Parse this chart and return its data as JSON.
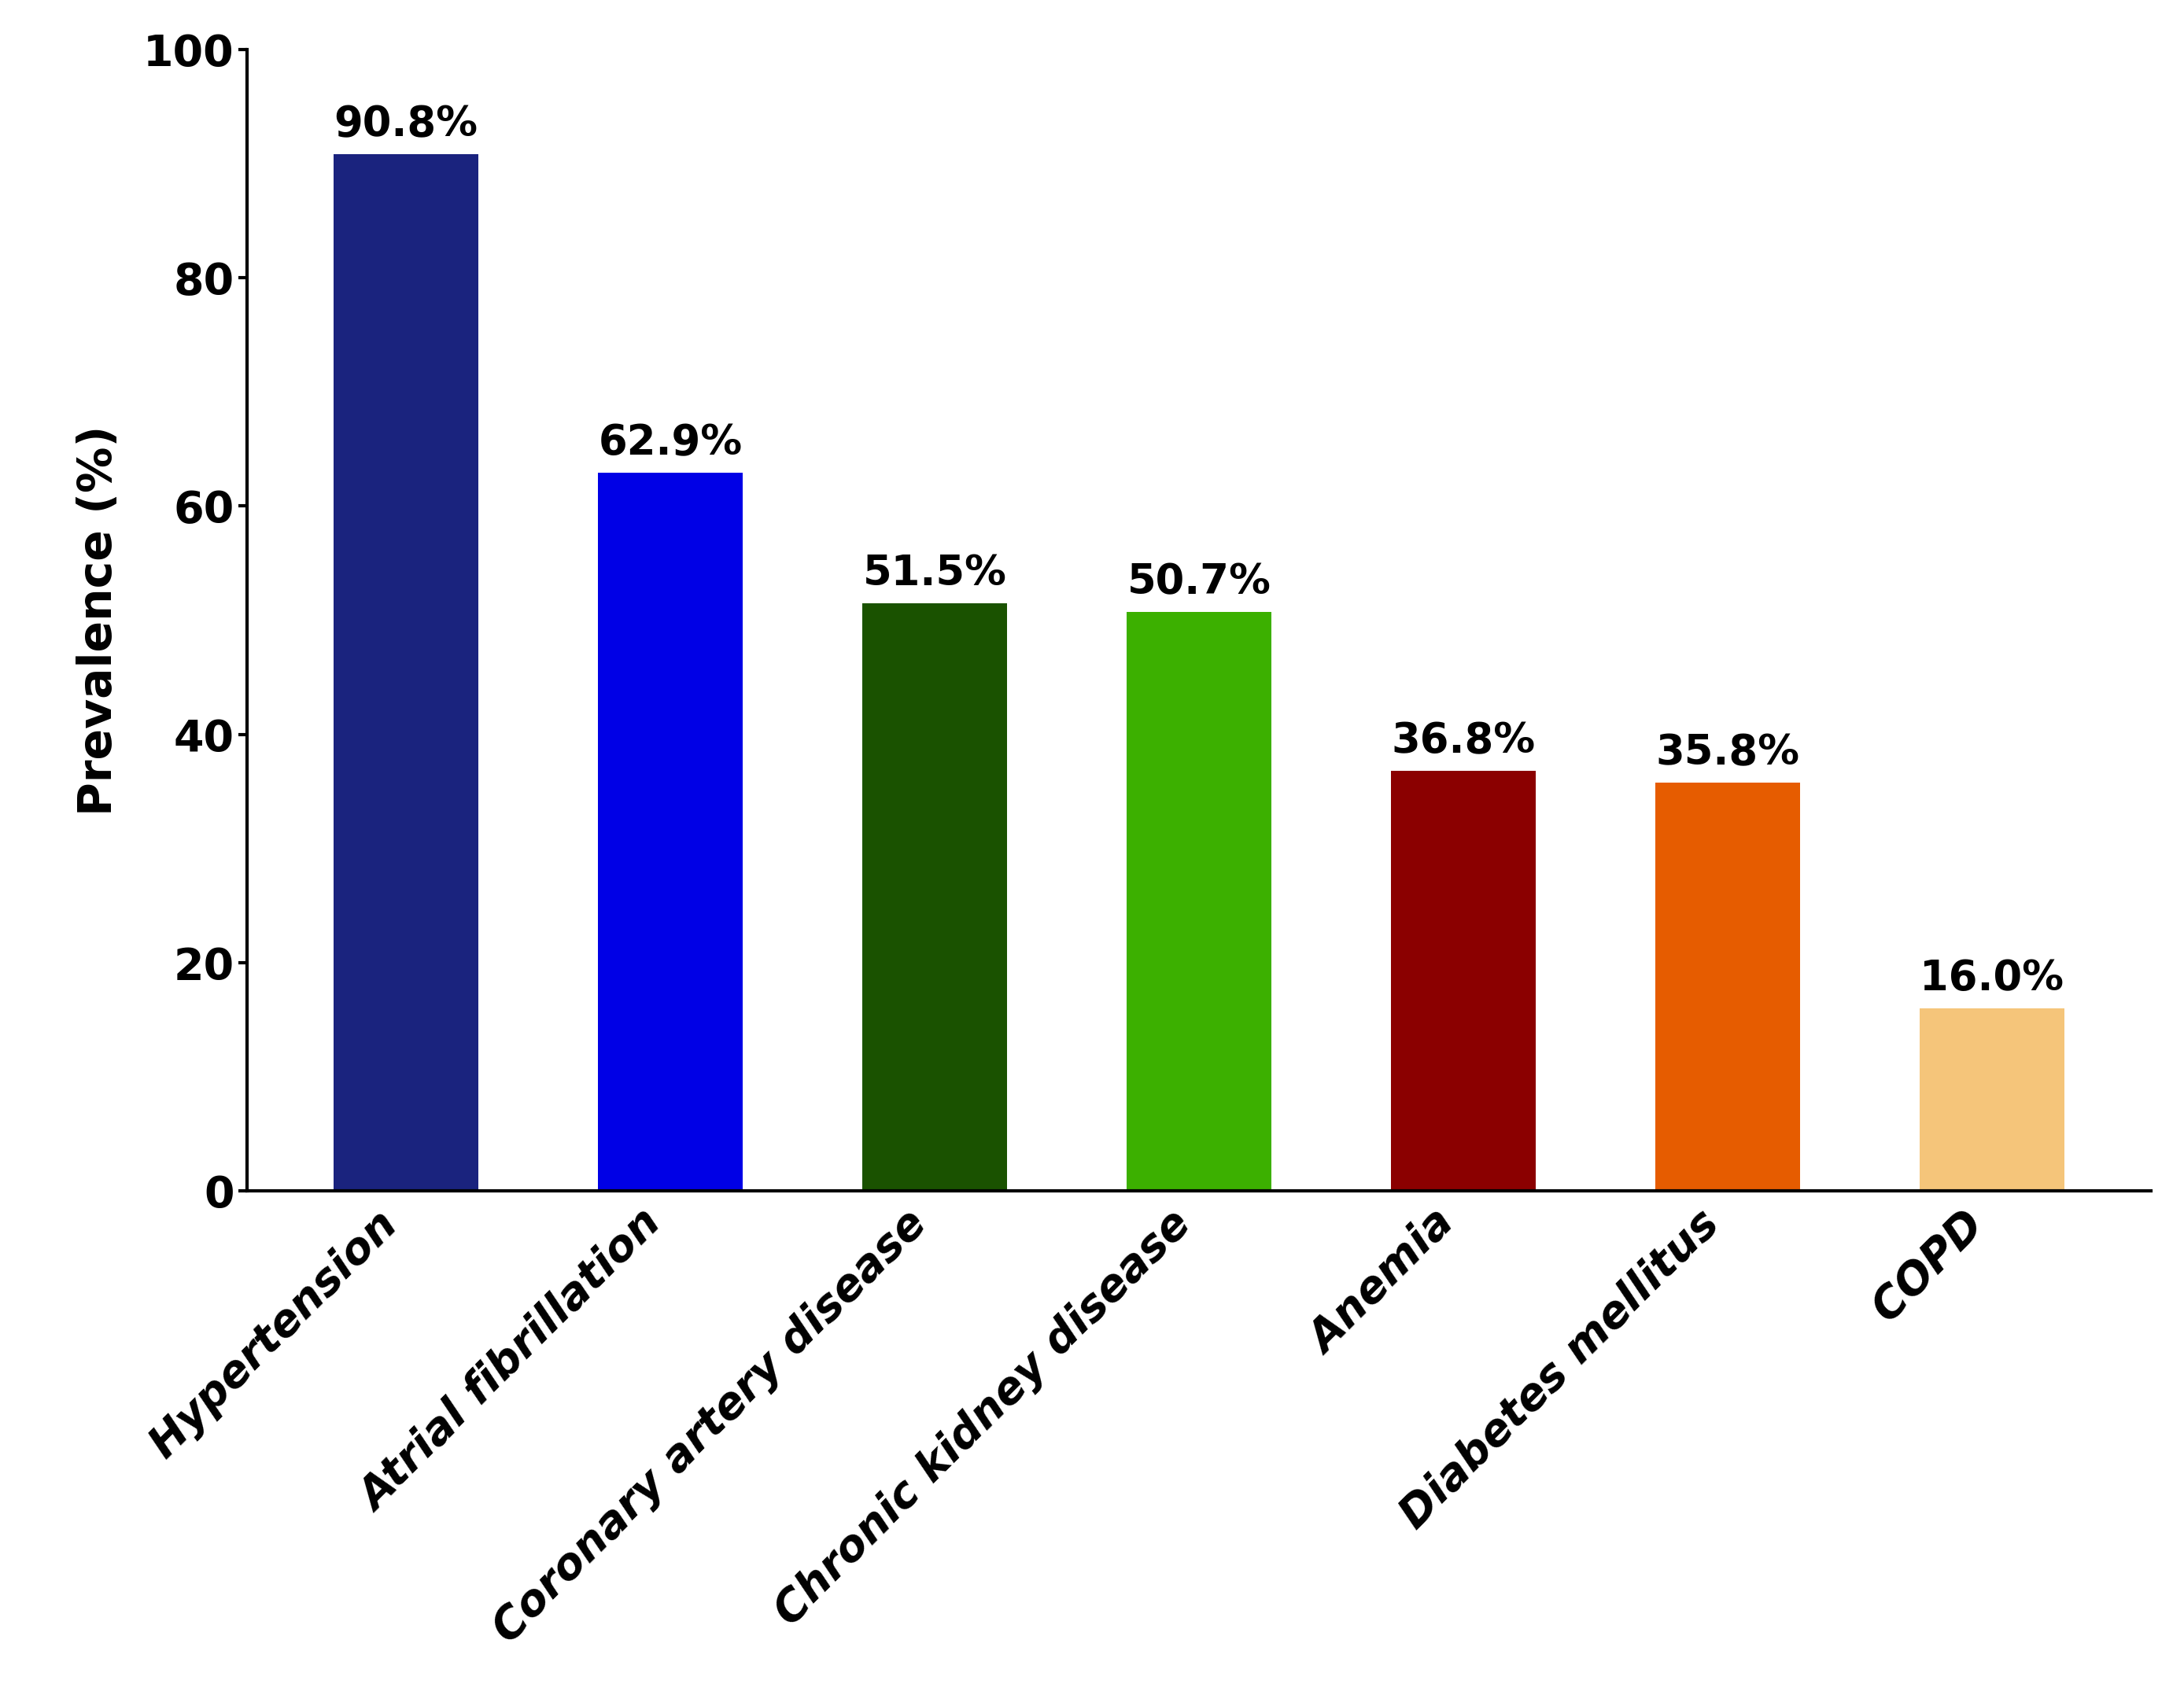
{
  "categories": [
    "Hypertension",
    "Atrial fibrillation",
    "Coronary artery disease",
    "Chronic kidney disease",
    "Anemia",
    "Diabetes mellitus",
    "COPD"
  ],
  "values": [
    90.8,
    62.9,
    51.5,
    50.7,
    36.8,
    35.8,
    16.0
  ],
  "bar_colors": [
    "#1a237e",
    "#0000e6",
    "#1a5200",
    "#3cb000",
    "#8b0000",
    "#e65c00",
    "#f5c57a"
  ],
  "labels": [
    "90.8%",
    "62.9%",
    "51.5%",
    "50.7%",
    "36.8%",
    "35.8%",
    "16.0%"
  ],
  "ylabel": "Prevalence (%)",
  "ylim": [
    0,
    100
  ],
  "yticks": [
    0,
    20,
    40,
    60,
    80,
    100
  ],
  "label_fontsize": 42,
  "tick_fontsize": 40,
  "value_fontsize": 38,
  "bar_width": 0.55,
  "background_color": "#ffffff"
}
